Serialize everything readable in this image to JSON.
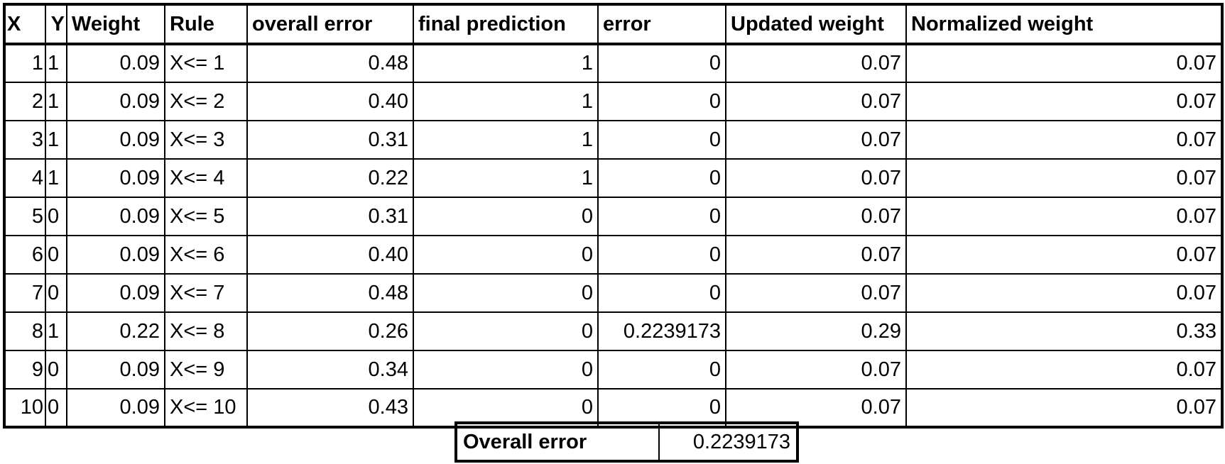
{
  "headers": [
    "X",
    "Y",
    "Weight",
    "Rule",
    "overall error",
    "final prediction",
    "error",
    "Updated weight",
    "Normalized weight"
  ],
  "rows": [
    [
      "1",
      "1",
      "0.09",
      "X<= 1",
      "0.48",
      "1",
      "0",
      "0.07",
      "0.07"
    ],
    [
      "2",
      "1",
      "0.09",
      "X<= 2",
      "0.40",
      "1",
      "0",
      "0.07",
      "0.07"
    ],
    [
      "3",
      "1",
      "0.09",
      "X<= 3",
      "0.31",
      "1",
      "0",
      "0.07",
      "0.07"
    ],
    [
      "4",
      "1",
      "0.09",
      "X<= 4",
      "0.22",
      "1",
      "0",
      "0.07",
      "0.07"
    ],
    [
      "5",
      "0",
      "0.09",
      "X<= 5",
      "0.31",
      "0",
      "0",
      "0.07",
      "0.07"
    ],
    [
      "6",
      "0",
      "0.09",
      "X<= 6",
      "0.40",
      "0",
      "0",
      "0.07",
      "0.07"
    ],
    [
      "7",
      "0",
      "0.09",
      "X<= 7",
      "0.48",
      "0",
      "0",
      "0.07",
      "0.07"
    ],
    [
      "8",
      "1",
      "0.22",
      "X<= 8",
      "0.26",
      "0",
      "0.2239173",
      "0.29",
      "0.33"
    ],
    [
      "9",
      "0",
      "0.09",
      "X<= 9",
      "0.34",
      "0",
      "0",
      "0.07",
      "0.07"
    ],
    [
      "10",
      "0",
      "0.09",
      "X<= 10",
      "0.43",
      "0",
      "0",
      "0.07",
      "0.07"
    ]
  ],
  "summary": {
    "label": "Overall error",
    "value": "0.2239173"
  }
}
